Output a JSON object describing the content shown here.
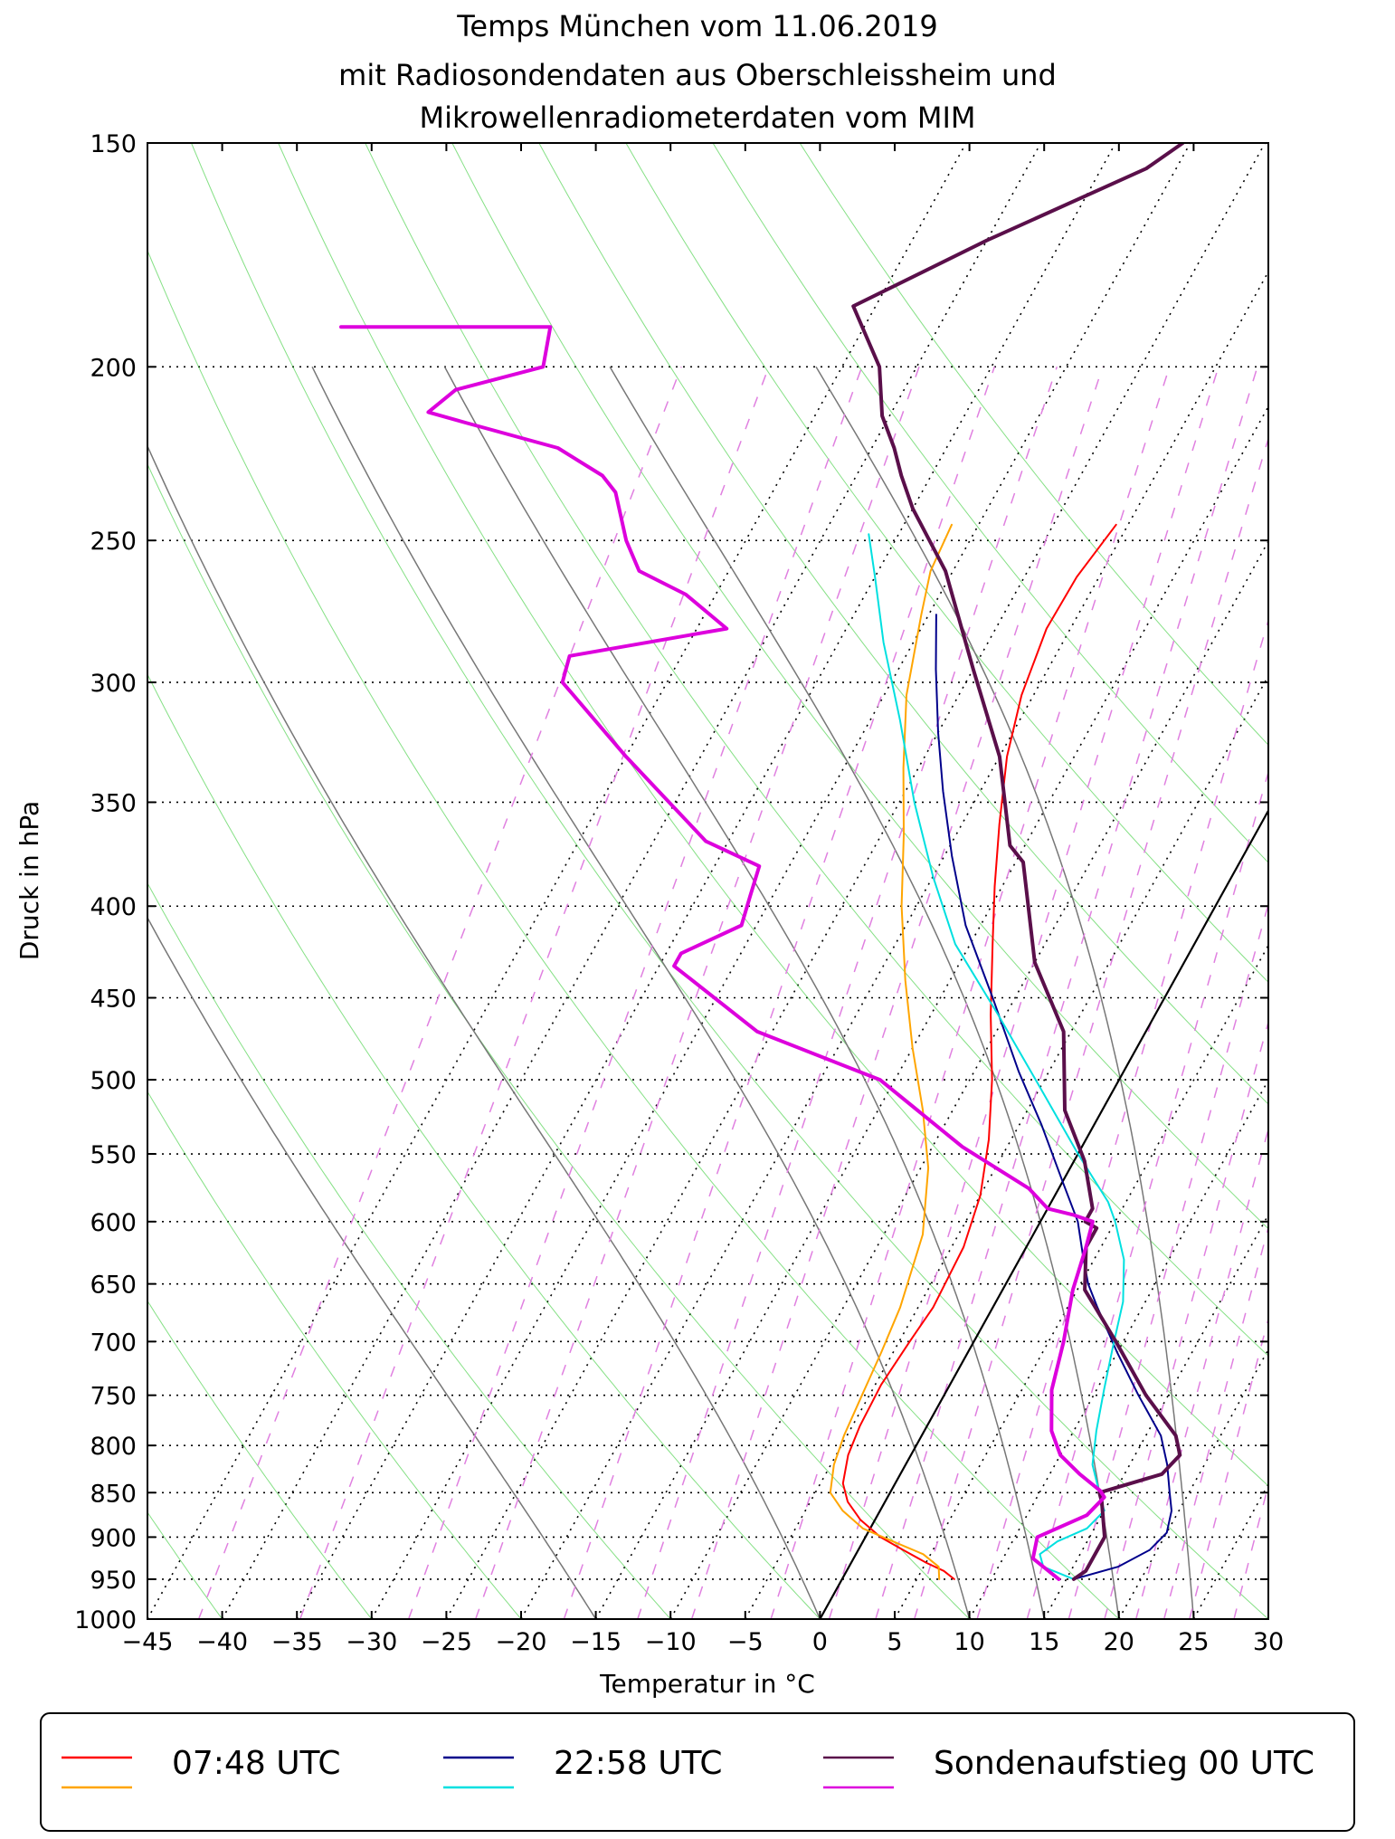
{
  "chart_data": {
    "type": "line",
    "subtype": "skew-t log-p diagram",
    "title_lines": [
      "Temps München vom 11.06.2019",
      "mit Radiosondendaten aus Oberschleissheim und",
      "Mikrowellenradiometerdaten vom MIM"
    ],
    "xlabel": "Temperatur in °C",
    "ylabel": "Druck in hPa",
    "xlim": [
      -45,
      30
    ],
    "ylim": [
      1000,
      150
    ],
    "x_ticks": [
      -45,
      -40,
      -35,
      -30,
      -25,
      -20,
      -15,
      -10,
      -5,
      0,
      5,
      10,
      15,
      20,
      25,
      30
    ],
    "y_ticks": [
      150,
      200,
      250,
      300,
      350,
      400,
      450,
      500,
      550,
      600,
      650,
      700,
      750,
      800,
      850,
      900,
      950,
      1000
    ],
    "x_tick_labels": [
      "−45",
      "−40",
      "−35",
      "−30",
      "−25",
      "−20",
      "−15",
      "−10",
      "−5",
      "0",
      "5",
      "10",
      "15",
      "20",
      "25",
      "30"
    ],
    "y_tick_labels": [
      "150",
      "200",
      "250",
      "300",
      "350",
      "400",
      "450",
      "500",
      "550",
      "600",
      "650",
      "700",
      "750",
      "800",
      "850",
      "900",
      "950",
      "1000"
    ],
    "background_lines": {
      "isotherm_temps": [
        -45,
        -40,
        -35,
        -30,
        -25,
        -20,
        -15,
        -10,
        -5,
        0,
        5,
        10,
        15,
        20,
        25,
        30,
        35,
        40
      ],
      "dry_adiabat_thetas": [
        -50,
        -40,
        -30,
        -20,
        -10,
        0,
        10,
        20,
        30,
        40,
        50,
        60,
        70,
        80,
        90,
        100
      ],
      "moist_adiabat_start_temps": [
        -15,
        0,
        10,
        15,
        20,
        25
      ],
      "mixing_ratio_lines_gkg": [
        0.1,
        0.2,
        0.4,
        0.6,
        1,
        1.5,
        2,
        3,
        4,
        5,
        6,
        8,
        10,
        12,
        14,
        16,
        18,
        20,
        24,
        28,
        32,
        36,
        40
      ],
      "reference_isotherm": 0
    },
    "legend": {
      "position": "bottom",
      "entries": [
        {
          "label": "07:48 UTC",
          "colors": [
            "#ff0000",
            "#ffa500"
          ]
        },
        {
          "label": "22:58 UTC",
          "colors": [
            "#00008b",
            "#00e0e0"
          ]
        },
        {
          "label": "Sondenaufstieg 00 UTC",
          "colors": [
            "#5a0f4a",
            "#dd00dd"
          ]
        }
      ]
    },
    "series": [
      {
        "name": "07:48 UTC temperature",
        "color": "#ff0000",
        "width": 2,
        "points": [
          [
            7.5,
            950
          ],
          [
            6.5,
            940
          ],
          [
            5,
            930
          ],
          [
            3,
            915
          ],
          [
            1,
            900
          ],
          [
            -1,
            880
          ],
          [
            -2.5,
            860
          ],
          [
            -3.5,
            840
          ],
          [
            -4.2,
            810
          ],
          [
            -4.5,
            780
          ],
          [
            -4.6,
            740
          ],
          [
            -4.3,
            700
          ],
          [
            -4.0,
            670
          ],
          [
            -4.2,
            620
          ],
          [
            -5.0,
            580
          ],
          [
            -6.5,
            540
          ],
          [
            -8.5,
            500
          ],
          [
            -11,
            460
          ],
          [
            -13.5,
            420
          ],
          [
            -15.5,
            390
          ],
          [
            -17.5,
            360
          ],
          [
            -19.5,
            330
          ],
          [
            -20.8,
            305
          ],
          [
            -21.6,
            280
          ],
          [
            -21.5,
            262
          ],
          [
            -20.8,
            245
          ]
        ]
      },
      {
        "name": "07:48 UTC dewpoint",
        "color": "#ffa500",
        "width": 2,
        "points": [
          [
            6.5,
            950
          ],
          [
            6,
            935
          ],
          [
            4.5,
            920
          ],
          [
            2,
            905
          ],
          [
            -0.5,
            890
          ],
          [
            -2.5,
            870
          ],
          [
            -4.0,
            850
          ],
          [
            -4.8,
            820
          ],
          [
            -5.2,
            790
          ],
          [
            -5.5,
            750
          ],
          [
            -5.8,
            710
          ],
          [
            -6.2,
            670
          ],
          [
            -7.4,
            610
          ],
          [
            -9.5,
            560
          ],
          [
            -12,
            520
          ],
          [
            -15,
            480
          ],
          [
            -18,
            440
          ],
          [
            -21,
            400
          ],
          [
            -23.5,
            365
          ],
          [
            -26,
            335
          ],
          [
            -28.5,
            305
          ],
          [
            -30.5,
            275
          ],
          [
            -31.5,
            260
          ],
          [
            -31.8,
            245
          ]
        ]
      },
      {
        "name": "22:58 UTC temperature",
        "color": "#00008b",
        "width": 2,
        "points": [
          [
            15.5,
            950
          ],
          [
            18,
            935
          ],
          [
            19.5,
            915
          ],
          [
            20,
            895
          ],
          [
            19.5,
            870
          ],
          [
            18.7,
            850
          ],
          [
            17.5,
            820
          ],
          [
            16,
            790
          ],
          [
            13,
            750
          ],
          [
            10,
            710
          ],
          [
            7,
            670
          ],
          [
            5.5,
            650
          ],
          [
            4,
            625
          ],
          [
            2.5,
            600
          ],
          [
            0,
            570
          ],
          [
            -3.5,
            530
          ],
          [
            -7,
            495
          ],
          [
            -11.5,
            450
          ],
          [
            -16,
            410
          ],
          [
            -19.5,
            375
          ],
          [
            -22.5,
            345
          ],
          [
            -25,
            320
          ],
          [
            -27.5,
            295
          ],
          [
            -29.5,
            275
          ]
        ]
      },
      {
        "name": "22:58 UTC dewpoint",
        "color": "#00e0e0",
        "width": 2,
        "points": [
          [
            15.5,
            950
          ],
          [
            13,
            935
          ],
          [
            12.3,
            920
          ],
          [
            13,
            905
          ],
          [
            14.5,
            890
          ],
          [
            15,
            870
          ],
          [
            14,
            850
          ],
          [
            12.5,
            820
          ],
          [
            11.5,
            785
          ],
          [
            10.5,
            745
          ],
          [
            9.5,
            705
          ],
          [
            8.5,
            665
          ],
          [
            7,
            630
          ],
          [
            5,
            600
          ],
          [
            3.8,
            585
          ],
          [
            0,
            550
          ],
          [
            -5,
            505
          ],
          [
            -10.5,
            460
          ],
          [
            -16,
            420
          ],
          [
            -20,
            385
          ],
          [
            -24,
            350
          ],
          [
            -28,
            315
          ],
          [
            -32,
            285
          ],
          [
            -35,
            262
          ],
          [
            -37,
            248
          ]
        ]
      },
      {
        "name": "Sondenaufstieg 00 UTC temperature",
        "color": "#5a0f4a",
        "width": 4,
        "points": [
          [
            15.5,
            950
          ],
          [
            16,
            940
          ],
          [
            16,
            900
          ],
          [
            14.5,
            860
          ],
          [
            14,
            850
          ],
          [
            17.5,
            830
          ],
          [
            18,
            810
          ],
          [
            17,
            790
          ],
          [
            13.5,
            750
          ],
          [
            9.5,
            700
          ],
          [
            5.5,
            655
          ],
          [
            4,
            620
          ],
          [
            4,
            605
          ],
          [
            3,
            600
          ],
          [
            3,
            590
          ],
          [
            0.7,
            555
          ],
          [
            -2.5,
            520
          ],
          [
            -5.5,
            470
          ],
          [
            -10,
            430
          ],
          [
            -14.5,
            378
          ],
          [
            -16,
            370
          ],
          [
            -20,
            330
          ],
          [
            -25,
            295
          ],
          [
            -30.5,
            260
          ],
          [
            -35,
            240
          ],
          [
            -37,
            230
          ],
          [
            -38.5,
            222
          ],
          [
            -40.5,
            213
          ],
          [
            -42.5,
            200
          ],
          [
            -46.5,
            185
          ],
          [
            -40,
            170
          ],
          [
            -32,
            155
          ],
          [
            -30.5,
            150
          ]
        ]
      },
      {
        "name": "Sondenaufstieg 00 UTC dewpoint",
        "color": "#dd00dd",
        "width": 4,
        "points": [
          [
            14.5,
            950
          ],
          [
            12,
            925
          ],
          [
            11.5,
            900
          ],
          [
            14,
            875
          ],
          [
            14.5,
            855
          ],
          [
            14,
            848
          ],
          [
            12,
            830
          ],
          [
            10,
            810
          ],
          [
            8.5,
            785
          ],
          [
            7,
            745
          ],
          [
            6,
            700
          ],
          [
            4.7,
            655
          ],
          [
            4,
            620
          ],
          [
            3.5,
            600
          ],
          [
            2,
            595
          ],
          [
            0,
            590
          ],
          [
            -2,
            575
          ],
          [
            -8,
            545
          ],
          [
            -16,
            500
          ],
          [
            -26,
            470
          ],
          [
            -34,
            432
          ],
          [
            -34,
            425
          ],
          [
            -31,
            410
          ],
          [
            -31.5,
            395
          ],
          [
            -32,
            380
          ],
          [
            -36.5,
            368
          ],
          [
            -45,
            330
          ],
          [
            -52,
            300
          ],
          [
            -52.5,
            290
          ],
          [
            -43,
            280
          ],
          [
            -47,
            268
          ],
          [
            -51,
            260
          ],
          [
            -53,
            250
          ],
          [
            -55.5,
            235
          ],
          [
            -57,
            230
          ],
          [
            -61,
            222
          ],
          [
            -68,
            215
          ],
          [
            -71,
            212
          ],
          [
            -70,
            206
          ],
          [
            -65,
            200
          ],
          [
            -66,
            190
          ],
          [
            -80,
            190
          ]
        ]
      }
    ]
  }
}
